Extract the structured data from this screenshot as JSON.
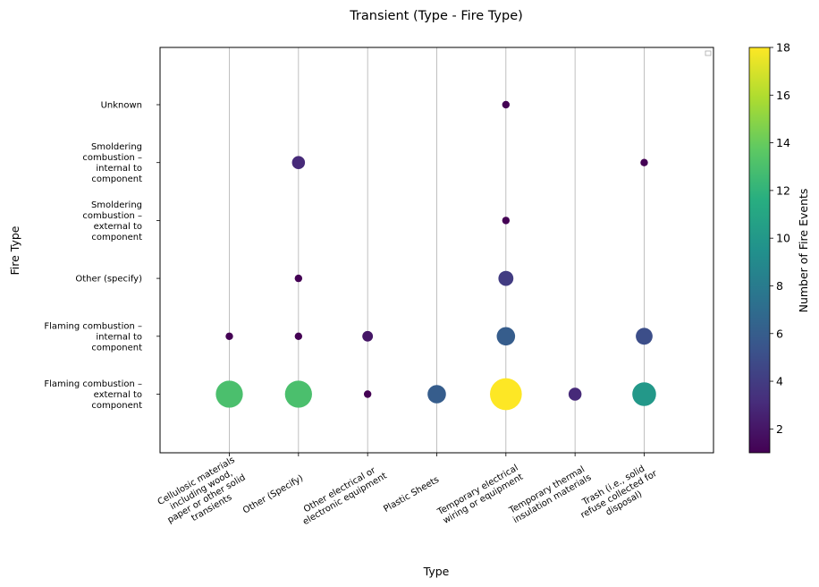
{
  "chart_data": {
    "type": "scatter",
    "title": "Transient (Type - Fire Type)",
    "xlabel": "Type",
    "ylabel": "Fire Type",
    "colorbar_label": "Number of Fire Events",
    "colormap": "viridis",
    "color_range": [
      1,
      18
    ],
    "colorbar_ticks": [
      2,
      4,
      6,
      8,
      10,
      12,
      14,
      16,
      18
    ],
    "grid": "vertical only",
    "legend": "top-right (empty)",
    "x_categories": [
      [
        "Cellulosic materials",
        "including wood,",
        "paper or other solid",
        "transients"
      ],
      [
        "Other (Specify)"
      ],
      [
        "Other electrical or",
        "electronic equipment"
      ],
      [
        "Plastic Sheets"
      ],
      [
        "Temporary electrical",
        "wiring or equipment"
      ],
      [
        "Temporary thermal",
        "insulation materials"
      ],
      [
        "Trash (i.e., solid",
        "refuse collected for",
        "disposal)"
      ]
    ],
    "y_categories": [
      [
        "Flaming combustion –",
        "external to",
        "component"
      ],
      [
        "Flaming combustion –",
        "internal to",
        "component"
      ],
      [
        "Other (specify)"
      ],
      [
        "Smoldering",
        "combustion –",
        "external to",
        "component"
      ],
      [
        "Smoldering",
        "combustion –",
        "internal to",
        "component"
      ],
      [
        "Unknown"
      ]
    ],
    "points": [
      {
        "x": 0,
        "y": 0,
        "count": 13
      },
      {
        "x": 1,
        "y": 0,
        "count": 13
      },
      {
        "x": 2,
        "y": 0,
        "count": 1
      },
      {
        "x": 3,
        "y": 0,
        "count": 6
      },
      {
        "x": 4,
        "y": 0,
        "count": 18
      },
      {
        "x": 5,
        "y": 0,
        "count": 3
      },
      {
        "x": 6,
        "y": 0,
        "count": 10
      },
      {
        "x": 0,
        "y": 1,
        "count": 1
      },
      {
        "x": 1,
        "y": 1,
        "count": 1
      },
      {
        "x": 2,
        "y": 1,
        "count": 2
      },
      {
        "x": 4,
        "y": 1,
        "count": 6
      },
      {
        "x": 6,
        "y": 1,
        "count": 5
      },
      {
        "x": 1,
        "y": 2,
        "count": 1
      },
      {
        "x": 4,
        "y": 2,
        "count": 4
      },
      {
        "x": 4,
        "y": 3,
        "count": 1
      },
      {
        "x": 1,
        "y": 4,
        "count": 3
      },
      {
        "x": 6,
        "y": 4,
        "count": 1
      },
      {
        "x": 4,
        "y": 5,
        "count": 1
      }
    ]
  }
}
